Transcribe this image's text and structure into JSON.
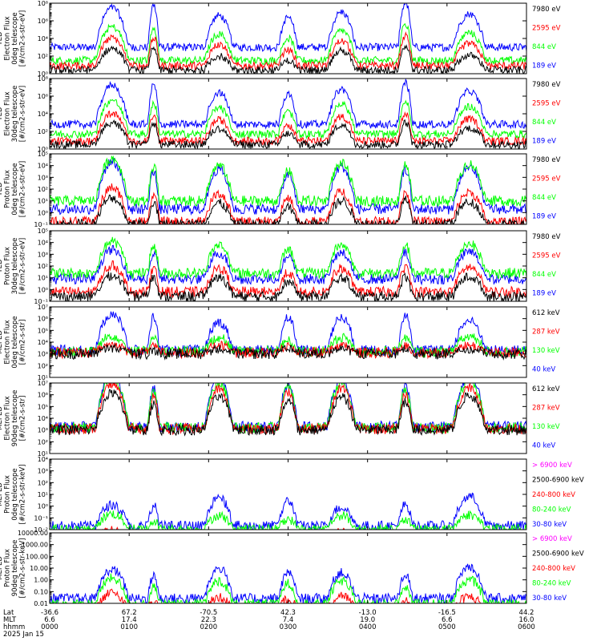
{
  "chart_data": [
    {
      "type": "line",
      "ylabel": [
        "TED",
        "Electron Flux",
        "0deg telescope",
        "[#/cm2-s-str-eV]"
      ],
      "ylim": [
        1,
        100000000
      ],
      "yscale": "log",
      "yticks": [
        {
          "v": 1,
          "t": "10⁰"
        },
        {
          "v": 100,
          "t": "10²"
        },
        {
          "v": 10000,
          "t": "10⁴"
        },
        {
          "v": 1000000,
          "t": "10⁶"
        },
        {
          "v": 100000000,
          "t": "10⁸"
        }
      ],
      "series": [
        {
          "name": "7980 eV",
          "color": "#000000",
          "level": [
            0.55,
            0.8,
            0.4,
            0.3
          ],
          "base": 0.4
        },
        {
          "name": "2595 eV",
          "color": "#ff0000",
          "level": [
            0.7,
            1.0,
            0.6,
            0.5
          ],
          "base": 0.9
        },
        {
          "name": "844 eV",
          "color": "#00ff00",
          "level": [
            0.85,
            1.2,
            0.75,
            0.7
          ],
          "base": 1.5
        },
        {
          "name": "189 eV",
          "color": "#0000ff",
          "level": [
            1.0,
            1.5,
            0.9,
            0.95
          ],
          "base": 3.0
        }
      ]
    },
    {
      "type": "line",
      "ylabel": [
        "TED",
        "Electron Flux",
        "30deg telescope",
        "[#/cm2-s-str-eV]"
      ],
      "ylim": [
        1,
        100000000
      ],
      "yscale": "log",
      "yticks": [
        {
          "v": 1,
          "t": "10⁰"
        },
        {
          "v": 100,
          "t": "10²"
        },
        {
          "v": 10000,
          "t": "10⁴"
        },
        {
          "v": 1000000,
          "t": "10⁶"
        },
        {
          "v": 100000000,
          "t": "10⁸"
        }
      ],
      "series": [
        {
          "name": "7980 eV",
          "color": "#000000",
          "level": [
            0.55,
            0.75,
            0.45,
            0.35
          ],
          "base": 0.5
        },
        {
          "name": "2595 eV",
          "color": "#ff0000",
          "level": [
            0.7,
            0.9,
            0.6,
            0.5
          ],
          "base": 0.9
        },
        {
          "name": "844 eV",
          "color": "#00ff00",
          "level": [
            0.85,
            1.1,
            0.75,
            0.7
          ],
          "base": 1.7
        },
        {
          "name": "189 eV",
          "color": "#0000ff",
          "level": [
            1.0,
            1.4,
            0.9,
            0.95
          ],
          "base": 2.8
        }
      ]
    },
    {
      "type": "line",
      "ylabel": [
        "TED",
        "Proton Flux",
        "0deg telescope",
        "[#/cm2-s-str-eV]"
      ],
      "ylim": [
        0.1,
        100000
      ],
      "yscale": "log",
      "yticks": [
        {
          "v": 0.1,
          "t": "10⁻¹"
        },
        {
          "v": 1,
          "t": "10⁰"
        },
        {
          "v": 10,
          "t": "10¹"
        },
        {
          "v": 100,
          "t": "10²"
        },
        {
          "v": 1000,
          "t": "10³"
        },
        {
          "v": 10000,
          "t": "10⁴"
        },
        {
          "v": 100000,
          "t": "10⁵"
        }
      ],
      "series": [
        {
          "name": "7980 eV",
          "color": "#000000",
          "level": [
            0.5,
            0.6,
            0.45,
            0.4
          ],
          "base": 0.0
        },
        {
          "name": "2595 eV",
          "color": "#ff0000",
          "level": [
            0.65,
            0.75,
            0.6,
            0.55
          ],
          "base": 0.2
        },
        {
          "name": "844 eV",
          "color": "#00ff00",
          "level": [
            0.8,
            0.9,
            0.75,
            0.7
          ],
          "base": 2.0
        },
        {
          "name": "189 eV",
          "color": "#0000ff",
          "level": [
            0.9,
            1.0,
            0.85,
            0.8
          ],
          "base": 1.3
        }
      ]
    },
    {
      "type": "line",
      "ylabel": [
        "TED",
        "Proton Flux",
        "30deg telescope",
        "[#/cm2-s-str-eV]"
      ],
      "ylim": [
        0.1,
        100000
      ],
      "yscale": "log",
      "yticks": [
        {
          "v": 0.1,
          "t": "10⁻¹"
        },
        {
          "v": 1,
          "t": "10⁰"
        },
        {
          "v": 10,
          "t": "10¹"
        },
        {
          "v": 100,
          "t": "10²"
        },
        {
          "v": 1000,
          "t": "10³"
        },
        {
          "v": 10000,
          "t": "10⁴"
        },
        {
          "v": 100000,
          "t": "10⁵"
        }
      ],
      "series": [
        {
          "name": "7980 eV",
          "color": "#000000",
          "level": [
            0.4,
            0.5,
            0.4,
            0.35
          ],
          "base": 0.4
        },
        {
          "name": "2595 eV",
          "color": "#ff0000",
          "level": [
            0.5,
            0.6,
            0.5,
            0.45
          ],
          "base": 0.8
        },
        {
          "name": "844 eV",
          "color": "#00ff00",
          "level": [
            0.6,
            0.7,
            0.6,
            0.55
          ],
          "base": 2.4
        },
        {
          "name": "189 eV",
          "color": "#0000ff",
          "level": [
            0.55,
            0.65,
            0.55,
            0.5
          ],
          "base": 1.9
        }
      ]
    },
    {
      "type": "line",
      "ylabel": [
        "MEPED",
        "Electron Flux",
        "0deg telescope",
        "[#/cm2-s-str]"
      ],
      "ylim": [
        10,
        10000000
      ],
      "yscale": "log",
      "yticks": [
        {
          "v": 10,
          "t": "10¹"
        },
        {
          "v": 100,
          "t": "10²"
        },
        {
          "v": 1000,
          "t": "10³"
        },
        {
          "v": 10000,
          "t": "10⁴"
        },
        {
          "v": 100000,
          "t": "10⁵"
        },
        {
          "v": 1000000,
          "t": "10⁶"
        },
        {
          "v": 10000000,
          "t": "10⁷"
        }
      ],
      "series": [
        {
          "name": "612 keV",
          "color": "#000000",
          "level": [
            0.1,
            0.1,
            0.1,
            0.1
          ],
          "base": 2.0
        },
        {
          "name": "287 keV",
          "color": "#ff0000",
          "level": [
            0.15,
            0.15,
            0.15,
            0.15
          ],
          "base": 2.1
        },
        {
          "name": "130 keV",
          "color": "#00ff00",
          "level": [
            0.3,
            0.35,
            0.3,
            0.25
          ],
          "base": 2.2
        },
        {
          "name": "40 keV",
          "color": "#0000ff",
          "level": [
            0.7,
            0.9,
            0.6,
            0.8
          ],
          "base": 2.3
        }
      ]
    },
    {
      "type": "line",
      "ylabel": [
        "MEPED",
        "Electron Flux",
        "90deg telescope",
        "[#/cm2-s-str]"
      ],
      "ylim": [
        10,
        10000000
      ],
      "yscale": "log",
      "yticks": [
        {
          "v": 10,
          "t": "10¹"
        },
        {
          "v": 100,
          "t": "10²"
        },
        {
          "v": 1000,
          "t": "10³"
        },
        {
          "v": 10000,
          "t": "10⁴"
        },
        {
          "v": 100000,
          "t": "10⁵"
        },
        {
          "v": 1000000,
          "t": "10⁶"
        },
        {
          "v": 10000000,
          "t": "10⁷"
        }
      ],
      "series": [
        {
          "name": "612 keV",
          "color": "#000000",
          "level": [
            0.7,
            0.7,
            0.7,
            0.7
          ],
          "base": 2.0
        },
        {
          "name": "287 keV",
          "color": "#ff0000",
          "level": [
            0.85,
            0.85,
            0.85,
            0.85
          ],
          "base": 2.1
        },
        {
          "name": "130 keV",
          "color": "#00ff00",
          "level": [
            0.95,
            0.95,
            0.95,
            0.95
          ],
          "base": 2.2
        },
        {
          "name": "40 keV",
          "color": "#0000ff",
          "level": [
            1.0,
            1.0,
            1.0,
            1.0
          ],
          "base": 2.3
        }
      ]
    },
    {
      "type": "line",
      "ylabel": [
        "MEPED",
        "Proton Flux",
        "0deg telescope",
        "[#/cm2-s-str-keV]"
      ],
      "ylim": [
        0.01,
        10000
      ],
      "yscale": "log",
      "yticks": [
        {
          "v": 0.01,
          "t": "10⁻²"
        },
        {
          "v": 0.1,
          "t": "10⁻¹"
        },
        {
          "v": 1,
          "t": "10⁰"
        },
        {
          "v": 10,
          "t": "10¹"
        },
        {
          "v": 100,
          "t": "10²"
        },
        {
          "v": 1000,
          "t": "10³"
        },
        {
          "v": 10000,
          "t": "10⁴"
        }
      ],
      "series": [
        {
          "name": "> 6900 keV",
          "color": "#ff00ff",
          "level": [
            0.05,
            0,
            0,
            0
          ],
          "base": -2.0
        },
        {
          "name": "2500-6900 keV",
          "color": "#000000",
          "level": [
            0.1,
            0,
            0,
            0
          ],
          "base": -1.5
        },
        {
          "name": "240-800 keV",
          "color": "#ff0000",
          "level": [
            0.2,
            0.05,
            0.05,
            0.05
          ],
          "base": -1.0
        },
        {
          "name": "80-240 keV",
          "color": "#00ff00",
          "level": [
            0.3,
            0.25,
            0.3,
            0.25
          ],
          "base": 0.0
        },
        {
          "name": "30-80 keV",
          "color": "#0000ff",
          "level": [
            0.4,
            0.55,
            0.6,
            0.6
          ],
          "base": 0.3
        }
      ]
    },
    {
      "type": "line",
      "ylabel": [
        "MEPED",
        "Proton Flux",
        "90deg telescope",
        "[#/cm2-s-str-keV]"
      ],
      "ylim": [
        0.01,
        10000
      ],
      "yscale": "log",
      "yticks": [
        {
          "v": 0.01,
          "t": "0.01"
        },
        {
          "v": 0.1,
          "t": "0.10"
        },
        {
          "v": 1,
          "t": "1.00"
        },
        {
          "v": 10,
          "t": "10.00"
        },
        {
          "v": 100,
          "t": "100.00"
        },
        {
          "v": 1000,
          "t": "1000.00"
        },
        {
          "v": 10000,
          "t": "10000.00"
        }
      ],
      "series": [
        {
          "name": "> 6900 keV",
          "color": "#ff00ff",
          "level": [
            0.05,
            0,
            0,
            0
          ],
          "base": -1.5
        },
        {
          "name": "2500-6900 keV",
          "color": "#000000",
          "level": [
            0.1,
            0.05,
            0.05,
            0.15
          ],
          "base": -1.2
        },
        {
          "name": "240-800 keV",
          "color": "#ff0000",
          "level": [
            0.35,
            0.25,
            0.3,
            0.3
          ],
          "base": -0.7
        },
        {
          "name": "80-240 keV",
          "color": "#00ff00",
          "level": [
            0.5,
            0.45,
            0.5,
            0.5
          ],
          "base": -0.1
        },
        {
          "name": "30-80 keV",
          "color": "#0000ff",
          "level": [
            0.55,
            0.6,
            0.65,
            0.6
          ],
          "base": 0.4
        }
      ]
    }
  ],
  "passes": [
    {
      "center": 0.131,
      "width": 0.035,
      "amp": 4.5
    },
    {
      "center": 0.218,
      "width": 0.012,
      "amp": 3.2
    },
    {
      "center": 0.355,
      "width": 0.03,
      "amp": 4.0
    },
    {
      "center": 0.5,
      "width": 0.02,
      "amp": 3.6
    },
    {
      "center": 0.612,
      "width": 0.03,
      "amp": 4.0
    },
    {
      "center": 0.746,
      "width": 0.015,
      "amp": 3.4
    },
    {
      "center": 0.88,
      "width": 0.035,
      "amp": 4.2
    }
  ],
  "x_axis": {
    "row_labels": [
      "Lat",
      "MLT",
      "hhmm",
      "2025 Jan 15"
    ],
    "ticks": [
      {
        "frac": 0.0,
        "lat": "-36.6",
        "mlt": "6.6",
        "hhmm": "0000"
      },
      {
        "frac": 0.1667,
        "lat": "67.2",
        "mlt": "17.4",
        "hhmm": "0100"
      },
      {
        "frac": 0.3333,
        "lat": "-70.5",
        "mlt": "22.3",
        "hhmm": "0200"
      },
      {
        "frac": 0.5,
        "lat": "42.3",
        "mlt": "7.4",
        "hhmm": "0300"
      },
      {
        "frac": 0.6667,
        "lat": "-13.0",
        "mlt": "19.0",
        "hhmm": "0400"
      },
      {
        "frac": 0.8333,
        "lat": "-16.5",
        "mlt": "6.6",
        "hhmm": "0500"
      },
      {
        "frac": 1.0,
        "lat": "44.2",
        "mlt": "16.0",
        "hhmm": "0600"
      }
    ]
  }
}
